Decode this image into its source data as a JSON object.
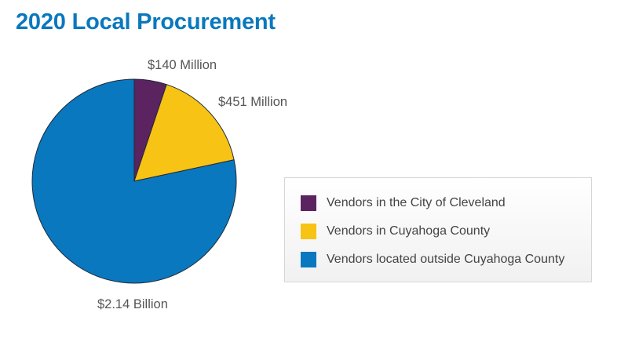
{
  "title": "2020 Local Procurement",
  "chart_data": {
    "type": "pie",
    "title": "2020 Local Procurement",
    "unit": "USD",
    "slices": [
      {
        "name": "Vendors in the City of Cleveland",
        "value": 140000000,
        "label": "$140 Million",
        "color": "#5b2360"
      },
      {
        "name": "Vendors in Cuyahoga County",
        "value": 451000000,
        "label": "$451 Million",
        "color": "#f7c314"
      },
      {
        "name": "Vendors located outside Cuyahoga County",
        "value": 2140000000,
        "label": "$2.14 Billion",
        "color": "#0a78be"
      }
    ],
    "start_angle": "12 o'clock",
    "direction": "clockwise",
    "legend_position": "right"
  }
}
